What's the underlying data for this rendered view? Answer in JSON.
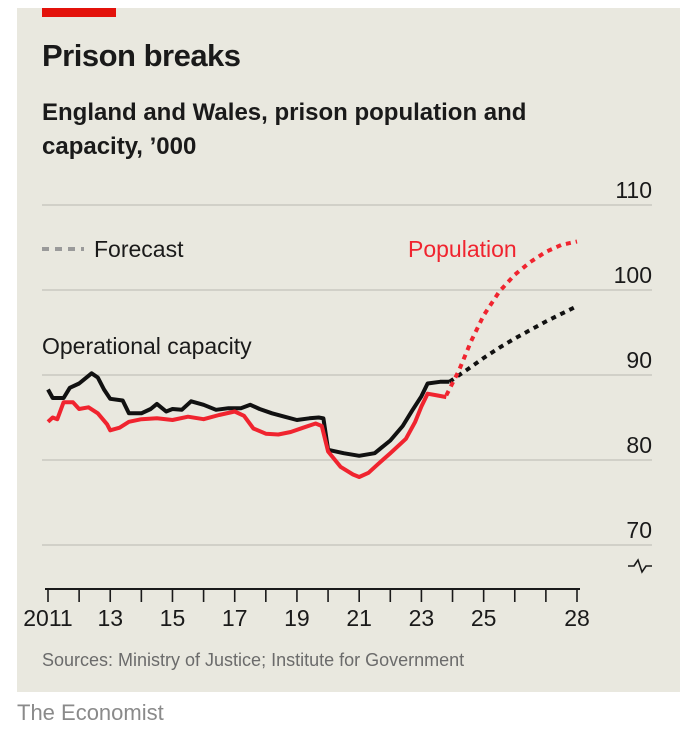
{
  "header": {
    "title": "Prison breaks",
    "subtitle": "England and Wales, prison population and capacity, ’000"
  },
  "source": "Sources: Ministry of Justice; Institute for Government",
  "brand": "The Economist",
  "colors": {
    "background": "#e9e8df",
    "accent": "#e3120b",
    "population": "#f0242f",
    "capacity": "#111111",
    "forecast_legend": "#9a9a9a",
    "grid": "#c9c8c0"
  },
  "chart_data": {
    "type": "line",
    "title": "Prison breaks",
    "subtitle": "England and Wales, prison population and capacity, ’000",
    "xlabel": "",
    "ylabel": "",
    "xlim": [
      2011,
      2028
    ],
    "ylim": [
      70,
      110
    ],
    "axis_break": true,
    "yticks": [
      70,
      80,
      90,
      100,
      110
    ],
    "ytick_labels": [
      "70",
      "80",
      "90",
      "100",
      "110"
    ],
    "xticks": [
      2011,
      2013,
      2015,
      2017,
      2019,
      2021,
      2023,
      2025,
      2028
    ],
    "xtick_labels": [
      "2011",
      "13",
      "15",
      "17",
      "19",
      "21",
      "23",
      "25",
      "28"
    ],
    "legend": [
      {
        "label": "Forecast",
        "style": "dotted"
      }
    ],
    "series": [
      {
        "name": "Operational capacity",
        "label_text": "Operational capacity",
        "color": "#111111",
        "style": "solid",
        "points": [
          [
            2011.0,
            88.3
          ],
          [
            2011.15,
            87.3
          ],
          [
            2011.5,
            87.3
          ],
          [
            2011.7,
            88.5
          ],
          [
            2012.0,
            89.0
          ],
          [
            2012.4,
            90.2
          ],
          [
            2012.6,
            89.7
          ],
          [
            2012.8,
            88.3
          ],
          [
            2013.0,
            87.2
          ],
          [
            2013.4,
            87.0
          ],
          [
            2013.6,
            85.5
          ],
          [
            2014.0,
            85.5
          ],
          [
            2014.3,
            86.0
          ],
          [
            2014.5,
            86.6
          ],
          [
            2014.8,
            85.7
          ],
          [
            2015.0,
            86.0
          ],
          [
            2015.3,
            85.9
          ],
          [
            2015.6,
            86.9
          ],
          [
            2016.0,
            86.5
          ],
          [
            2016.4,
            85.9
          ],
          [
            2016.8,
            86.1
          ],
          [
            2017.2,
            86.1
          ],
          [
            2017.5,
            86.5
          ],
          [
            2017.8,
            86.0
          ],
          [
            2018.2,
            85.5
          ],
          [
            2018.6,
            85.1
          ],
          [
            2019.0,
            84.7
          ],
          [
            2019.4,
            84.9
          ],
          [
            2019.7,
            85.0
          ],
          [
            2019.85,
            84.9
          ],
          [
            2020.0,
            81.2
          ],
          [
            2020.5,
            80.8
          ],
          [
            2021.0,
            80.5
          ],
          [
            2021.5,
            80.8
          ],
          [
            2022.0,
            82.3
          ],
          [
            2022.4,
            84.0
          ],
          [
            2022.7,
            85.8
          ],
          [
            2023.0,
            87.5
          ],
          [
            2023.2,
            89.0
          ],
          [
            2023.6,
            89.2
          ],
          [
            2023.9,
            89.2
          ]
        ]
      },
      {
        "name": "Population",
        "label_text": "Population",
        "color": "#f0242f",
        "style": "solid",
        "points": [
          [
            2011.0,
            84.5
          ],
          [
            2011.15,
            85.0
          ],
          [
            2011.3,
            84.8
          ],
          [
            2011.5,
            86.8
          ],
          [
            2011.8,
            86.8
          ],
          [
            2012.0,
            86.0
          ],
          [
            2012.3,
            86.2
          ],
          [
            2012.6,
            85.5
          ],
          [
            2012.9,
            84.2
          ],
          [
            2013.0,
            83.5
          ],
          [
            2013.3,
            83.8
          ],
          [
            2013.6,
            84.5
          ],
          [
            2014.0,
            84.8
          ],
          [
            2014.5,
            84.9
          ],
          [
            2015.0,
            84.7
          ],
          [
            2015.5,
            85.1
          ],
          [
            2016.0,
            84.8
          ],
          [
            2016.5,
            85.3
          ],
          [
            2017.0,
            85.7
          ],
          [
            2017.3,
            85.2
          ],
          [
            2017.6,
            83.7
          ],
          [
            2018.0,
            83.1
          ],
          [
            2018.4,
            83.0
          ],
          [
            2018.8,
            83.3
          ],
          [
            2019.2,
            83.8
          ],
          [
            2019.6,
            84.3
          ],
          [
            2019.8,
            84.0
          ],
          [
            2020.0,
            81.0
          ],
          [
            2020.4,
            79.2
          ],
          [
            2020.8,
            78.3
          ],
          [
            2021.0,
            78.0
          ],
          [
            2021.3,
            78.5
          ],
          [
            2021.6,
            79.5
          ],
          [
            2022.0,
            80.8
          ],
          [
            2022.5,
            82.5
          ],
          [
            2022.8,
            84.5
          ],
          [
            2023.0,
            86.3
          ],
          [
            2023.2,
            87.8
          ],
          [
            2023.5,
            87.6
          ],
          [
            2023.8,
            87.4
          ]
        ]
      },
      {
        "name": "Capacity forecast",
        "color": "#111111",
        "style": "dotted",
        "points": [
          [
            2023.9,
            89.2
          ],
          [
            2024.5,
            90.7
          ],
          [
            2025.0,
            92.0
          ],
          [
            2025.5,
            93.2
          ],
          [
            2026.0,
            94.3
          ],
          [
            2026.5,
            95.3
          ],
          [
            2027.0,
            96.3
          ],
          [
            2027.5,
            97.2
          ],
          [
            2028.0,
            98.1
          ]
        ]
      },
      {
        "name": "Population forecast",
        "color": "#f0242f",
        "style": "dotted",
        "points": [
          [
            2023.8,
            87.6
          ],
          [
            2024.2,
            90.5
          ],
          [
            2024.6,
            94.0
          ],
          [
            2025.0,
            97.0
          ],
          [
            2025.5,
            99.8
          ],
          [
            2026.0,
            101.8
          ],
          [
            2026.5,
            103.3
          ],
          [
            2027.0,
            104.5
          ],
          [
            2027.5,
            105.3
          ],
          [
            2028.0,
            105.7
          ]
        ]
      }
    ]
  }
}
